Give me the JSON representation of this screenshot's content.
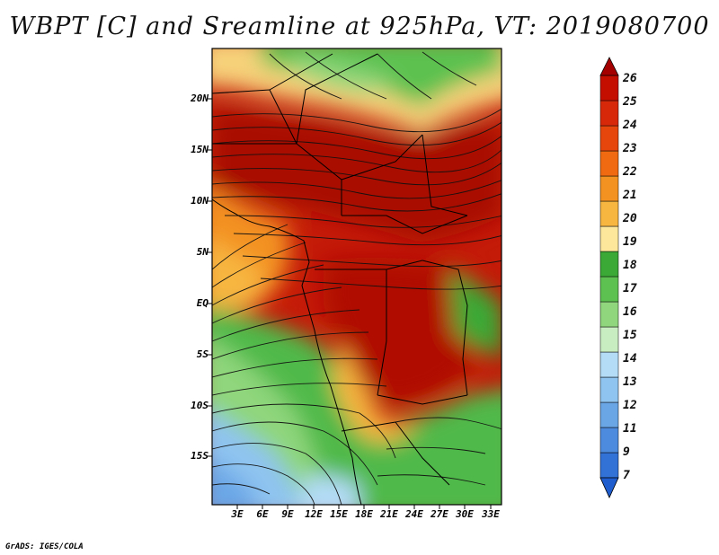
{
  "title": "WBPT [C] and Sreamline at 925hPa, VT: 2019080700",
  "lat_labels": [
    "20N",
    "15N",
    "10N",
    "5N",
    "EQ",
    "5S",
    "10S",
    "15S"
  ],
  "lon_labels": [
    "3E",
    "6E",
    "9E",
    "12E",
    "15E",
    "18E",
    "21E",
    "24E",
    "27E",
    "30E",
    "33E"
  ],
  "colorbar": {
    "levels": [
      "26",
      "25",
      "24",
      "23",
      "22",
      "21",
      "20",
      "19",
      "18",
      "17",
      "16",
      "15",
      "14",
      "13",
      "12",
      "11",
      "9",
      "7"
    ],
    "colors": [
      "#a50000",
      "#c40e00",
      "#d8280a",
      "#e6460c",
      "#ef6a10",
      "#f39220",
      "#f7b640",
      "#fde79a",
      "#3aa935",
      "#5cc150",
      "#8fd67c",
      "#c8edc0",
      "#b4dcf7",
      "#8fc4f0",
      "#6aa6e6",
      "#4d8bde",
      "#3271d6",
      "#1f5ccd"
    ]
  },
  "footer": "GrADS: IGES/COLA"
}
